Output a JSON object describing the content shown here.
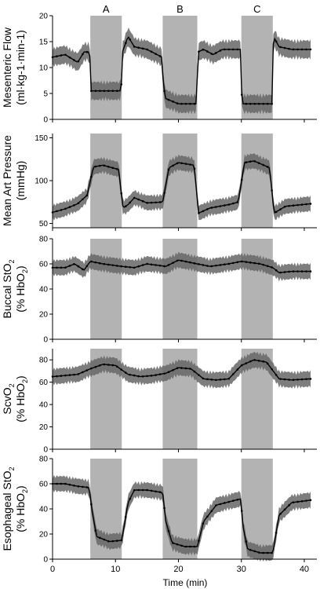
{
  "figure": {
    "shading_color": "#b3b3b3",
    "band_color": "#666666",
    "line_color": "#000000",
    "x_axis": {
      "label": "Time (min)",
      "range": [
        0,
        42
      ],
      "ticks": [
        0,
        10,
        20,
        30,
        40
      ]
    }
  },
  "chart_data": [
    {
      "type": "line",
      "ylabel_line1": "Mesenteric Flow",
      "ylabel_line2": "(ml·kg-1·min-1)",
      "ylim": [
        0,
        20
      ],
      "yticks": [
        0,
        5,
        10,
        15,
        20
      ],
      "shaded_intervals": [
        {
          "label": "A",
          "start": 6,
          "end": 11
        },
        {
          "label": "B",
          "start": 17.5,
          "end": 23
        },
        {
          "label": "C",
          "start": 30,
          "end": 35
        }
      ],
      "series": [
        {
          "x": [
            0,
            2,
            4,
            5,
            5.9,
            6.1,
            8,
            10.9,
            11.1,
            12,
            13,
            15,
            17.4,
            17.6,
            18,
            20,
            22.9,
            23.1,
            24,
            25.5,
            27,
            29.9,
            30.1,
            33,
            34.9,
            35.1,
            36,
            38,
            41
          ],
          "y": [
            12,
            12.5,
            11,
            13,
            13,
            5.5,
            5.5,
            5.5,
            13,
            16,
            14,
            13.5,
            12,
            6.5,
            4,
            3,
            3,
            13,
            13.5,
            12.5,
            13.5,
            13.5,
            3,
            3,
            3,
            16,
            14,
            13.5,
            13.5
          ],
          "error": 2
        }
      ]
    },
    {
      "type": "line",
      "ylabel_line1": "Mean Art Pressure",
      "ylabel_line2": "(mmHg)",
      "ylim": [
        45,
        155
      ],
      "yticks": [
        50,
        100,
        150
      ],
      "shaded_intervals": [
        {
          "label": "",
          "start": 6,
          "end": 11
        },
        {
          "label": "",
          "start": 17.5,
          "end": 23
        },
        {
          "label": "",
          "start": 30,
          "end": 35
        }
      ],
      "series": [
        {
          "x": [
            0,
            2,
            4,
            5.5,
            6.5,
            8,
            10.5,
            11.2,
            12,
            13,
            15,
            17.5,
            18.5,
            20,
            22.5,
            23.2,
            25,
            28,
            29.5,
            30.5,
            32,
            34.5,
            35.2,
            37,
            41
          ],
          "y": [
            63,
            67,
            73,
            83,
            116,
            118,
            113,
            68,
            72,
            80,
            74,
            75,
            115,
            121,
            118,
            62,
            68,
            72,
            75,
            121,
            123,
            115,
            62,
            70,
            73
          ],
          "error": 10
        }
      ]
    },
    {
      "type": "line",
      "ylabel_line1": "Buccal StO",
      "ylabel_line1_sub": "2",
      "ylabel_line2": "(% HbO",
      "ylabel_line2_sub": "2",
      "ylabel_line2_end": ")",
      "ylim": [
        0,
        80
      ],
      "yticks": [
        0,
        20,
        40,
        60,
        80
      ],
      "shaded_intervals": [
        {
          "label": "",
          "start": 6,
          "end": 11
        },
        {
          "label": "",
          "start": 17.5,
          "end": 23
        },
        {
          "label": "",
          "start": 30,
          "end": 35
        }
      ],
      "series": [
        {
          "x": [
            0,
            2,
            3.5,
            5,
            6,
            8,
            11,
            13,
            15,
            18,
            20,
            23,
            25,
            28,
            30,
            33,
            35,
            36,
            38,
            41
          ],
          "y": [
            57,
            57,
            60,
            55,
            62,
            60,
            58,
            57,
            60,
            58,
            63,
            60,
            58,
            60,
            62,
            60,
            57,
            53,
            54,
            54
          ],
          "error": 7
        }
      ]
    },
    {
      "type": "line",
      "ylabel_line1": "ScvO",
      "ylabel_line1_sub": "2",
      "ylabel_line2": "(% HbO",
      "ylabel_line2_sub": "2",
      "ylabel_line2_end": ")",
      "ylim": [
        0,
        90
      ],
      "yticks": [
        0,
        20,
        40,
        60,
        80
      ],
      "shaded_intervals": [
        {
          "label": "",
          "start": 6,
          "end": 11
        },
        {
          "label": "",
          "start": 17.5,
          "end": 23
        },
        {
          "label": "",
          "start": 30,
          "end": 35
        }
      ],
      "series": [
        {
          "x": [
            0,
            2,
            4,
            6,
            8,
            10,
            12,
            14,
            16,
            18,
            20,
            22,
            24,
            26,
            28,
            30,
            32,
            34,
            36,
            38,
            41
          ],
          "y": [
            65,
            66,
            67,
            72,
            76,
            75,
            67,
            65,
            66,
            68,
            73,
            72,
            63,
            62,
            63,
            75,
            80,
            78,
            63,
            62,
            63
          ],
          "error": 8
        }
      ]
    },
    {
      "type": "line",
      "ylabel_line1": "Esophageal StO",
      "ylabel_line1_sub": "2",
      "ylabel_line2": "(% HbO",
      "ylabel_line2_sub": "2",
      "ylabel_line2_end": ")",
      "ylim": [
        0,
        80
      ],
      "yticks": [
        0,
        20,
        40,
        60,
        80
      ],
      "shaded_intervals": [
        {
          "label": "",
          "start": 6,
          "end": 11
        },
        {
          "label": "",
          "start": 17.5,
          "end": 23
        },
        {
          "label": "",
          "start": 30,
          "end": 35
        }
      ],
      "series": [
        {
          "x": [
            0,
            2,
            4,
            5.8,
            6.3,
            7,
            9,
            11,
            12,
            13,
            15,
            17.5,
            18,
            19,
            21,
            23,
            24,
            26,
            29.9,
            30.3,
            31,
            33,
            35,
            36,
            38,
            41
          ],
          "y": [
            60,
            60,
            58,
            57,
            38,
            18,
            14,
            15,
            45,
            55,
            55,
            53,
            30,
            13,
            10,
            10,
            30,
            43,
            48,
            25,
            8,
            5,
            5,
            35,
            45,
            47
          ],
          "error": 7
        }
      ]
    }
  ]
}
